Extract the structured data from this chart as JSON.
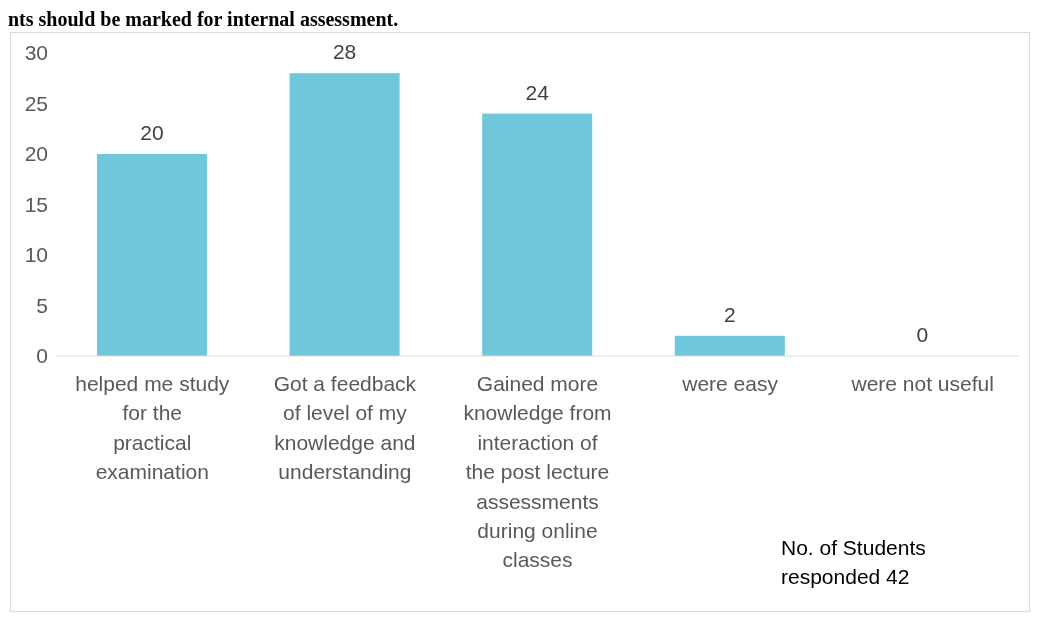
{
  "chart_data": {
    "type": "bar",
    "title": "nts should be marked for internal assessment.",
    "categories": [
      "helped me study for the practical examination",
      "Got a feedback of level of my knowledge and understanding",
      "Gained more knowledge from interaction of the post lecture assessments during online classes",
      "were easy",
      "were not useful"
    ],
    "values": [
      20,
      28,
      24,
      2,
      0
    ],
    "color": "#70c6db",
    "ylim": [
      0,
      30
    ],
    "yticks": [
      0,
      5,
      10,
      15,
      20,
      25,
      30
    ],
    "grid": false,
    "data_labels": true,
    "legend": false,
    "annotations": [
      "No. of Students responded 42"
    ]
  }
}
